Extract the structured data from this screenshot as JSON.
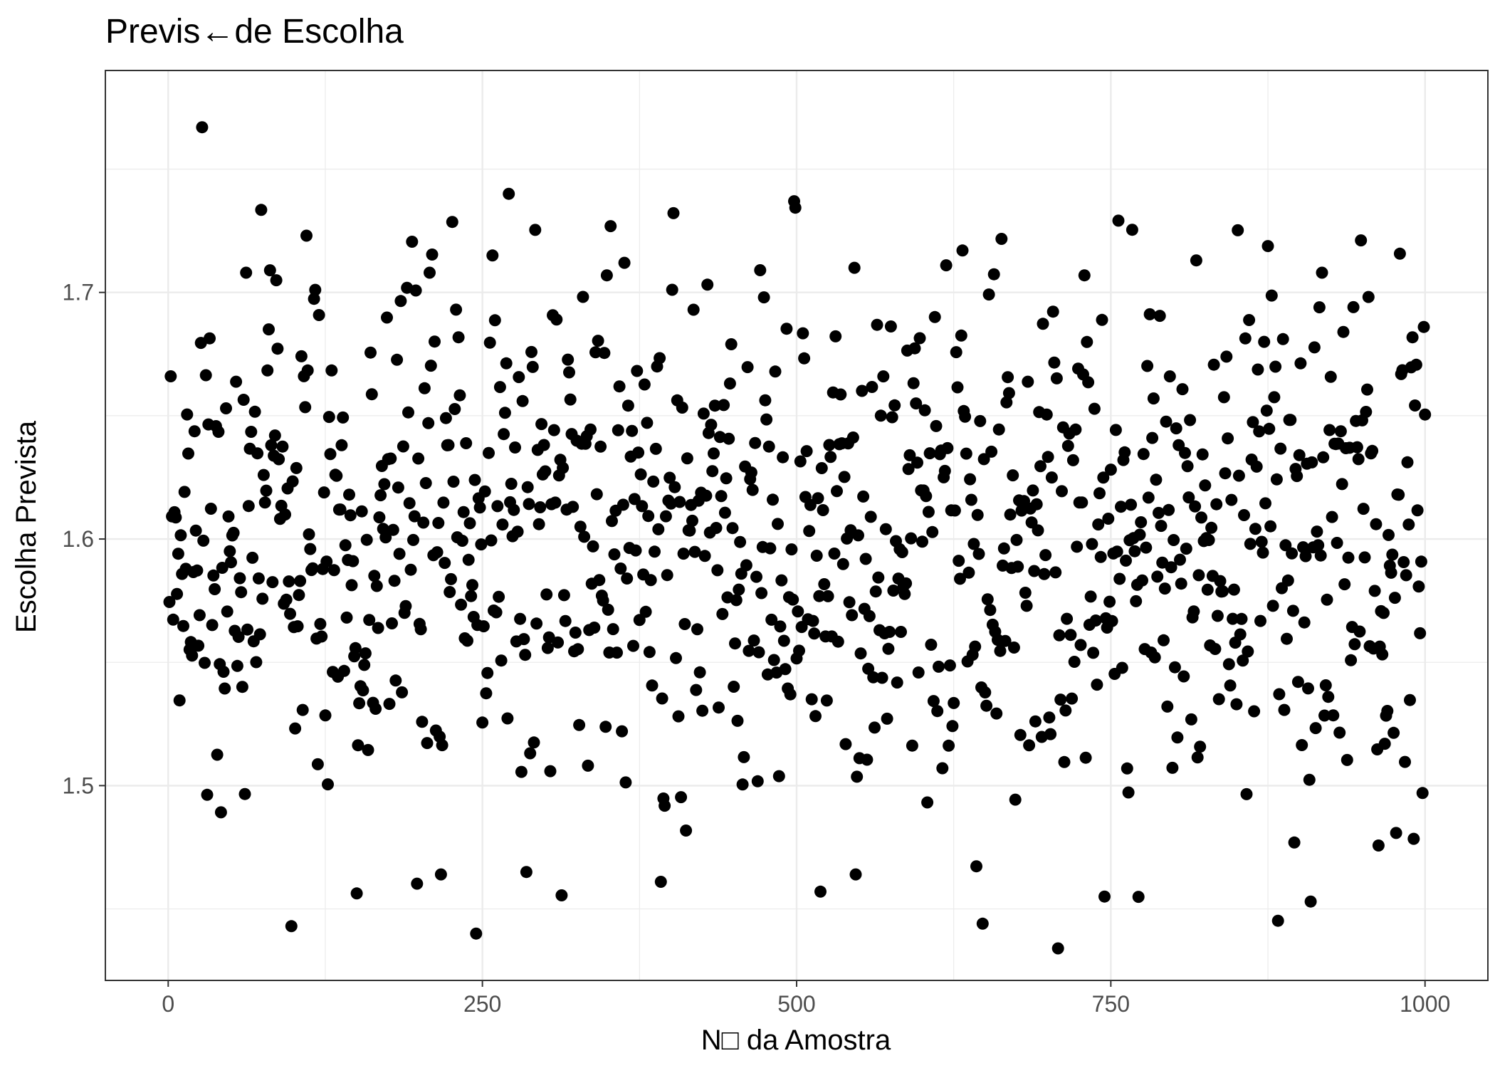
{
  "chart_data": {
    "type": "scatter",
    "title": "Previs←de Escolha",
    "xlabel": "N□ da Amostra",
    "ylabel": "Escolha Prevista",
    "xlim": [
      -50,
      1050
    ],
    "ylim": [
      1.421,
      1.79
    ],
    "x_ticks": [
      0,
      250,
      500,
      750,
      1000
    ],
    "x_tick_labels": [
      "0",
      "250",
      "500",
      "750",
      "1000"
    ],
    "y_ticks": [
      1.5,
      1.6,
      1.7
    ],
    "y_tick_labels": [
      "1.5",
      "1.6",
      "1.7"
    ],
    "grid": true,
    "point_color": "#000000",
    "n_points": 1000,
    "y_distribution": {
      "mean": 1.6,
      "sd": 0.052,
      "min": 1.433,
      "max": 1.767
    },
    "highlighted_points": [
      {
        "x": 27,
        "y": 1.767
      },
      {
        "x": 271,
        "y": 1.74
      },
      {
        "x": 498,
        "y": 1.737
      },
      {
        "x": 110,
        "y": 1.723
      },
      {
        "x": 258,
        "y": 1.715
      },
      {
        "x": 818,
        "y": 1.713
      },
      {
        "x": 363,
        "y": 1.712
      },
      {
        "x": 619,
        "y": 1.711
      },
      {
        "x": 546,
        "y": 1.71
      },
      {
        "x": 471,
        "y": 1.709
      },
      {
        "x": 918,
        "y": 1.708
      },
      {
        "x": 208,
        "y": 1.708
      },
      {
        "x": 62,
        "y": 1.708
      },
      {
        "x": 98,
        "y": 1.443
      },
      {
        "x": 245,
        "y": 1.44
      },
      {
        "x": 648,
        "y": 1.444
      },
      {
        "x": 909,
        "y": 1.453
      },
      {
        "x": 708,
        "y": 1.434
      },
      {
        "x": 745,
        "y": 1.455
      },
      {
        "x": 519,
        "y": 1.457
      },
      {
        "x": 392,
        "y": 1.461
      },
      {
        "x": 217,
        "y": 1.464
      },
      {
        "x": 547,
        "y": 1.464
      },
      {
        "x": 999,
        "y": 1.686
      },
      {
        "x": 998,
        "y": 1.497
      }
    ]
  }
}
